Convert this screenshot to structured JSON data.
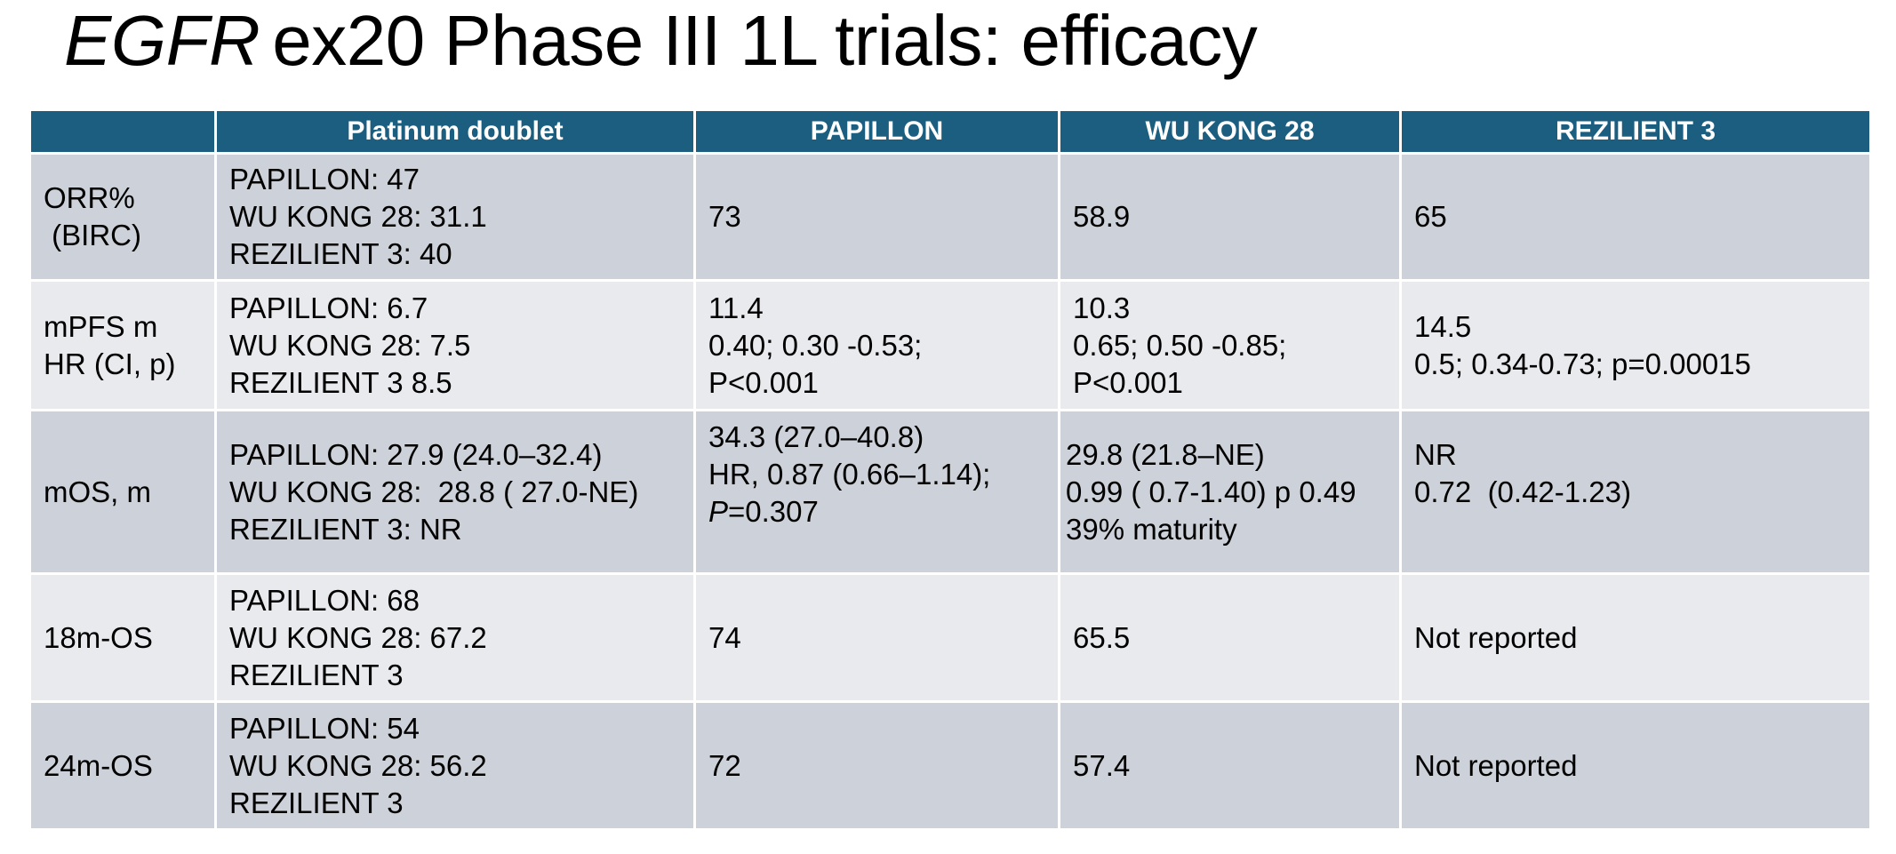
{
  "title": {
    "gene": "EGFR",
    "rest": "ex20 Phase III 1L trials: efficacy"
  },
  "table": {
    "headers": [
      "",
      "Platinum doublet",
      "PAPILLON",
      "WU KONG 28",
      "REZILIENT 3"
    ],
    "rows": [
      {
        "label": [
          "ORR%",
          " (BIRC)"
        ],
        "platinum": [
          "PAPILLON: 47",
          "WU KONG 28: 31.1",
          "REZILIENT 3: 40"
        ],
        "papillon": [
          "73"
        ],
        "wukong": [
          "58.9"
        ],
        "rezilient": [
          "65"
        ]
      },
      {
        "label": [
          "mPFS m",
          "HR (CI, p)"
        ],
        "platinum": [
          "PAPILLON: 6.7",
          "WU KONG 28: 7.5",
          "REZILIENT 3 8.5"
        ],
        "papillon": [
          "11.4",
          "0.40; 0.30 -0.53;",
          "P<0.001"
        ],
        "wukong": [
          "10.3",
          "0.65; 0.50 -0.85;",
          "P<0.001"
        ],
        "rezilient": [
          "14.5",
          "0.5; 0.34-0.73; p=0.00015"
        ]
      },
      {
        "label": [
          "mOS, m"
        ],
        "platinum": [
          "PAPILLON: 27.9 (24.0–32.4)",
          "WU KONG 28:  28.8 ( 27.0-NE)",
          "REZILIENT 3: NR"
        ],
        "papillon": [
          "34.3 (27.0–40.8)",
          "HR, 0.87 (0.66–1.14);",
          "P",
          "=0.307"
        ],
        "wukong": [
          "29.8 (21.8–NE)",
          "0.99 ( 0.7-1.40) p 0.49",
          "39% maturity"
        ],
        "rezilient": [
          "NR",
          "0.72  (0.42-1.23)"
        ]
      },
      {
        "label": [
          "18m-OS"
        ],
        "platinum": [
          "PAPILLON: 68",
          "WU KONG 28: 67.2",
          "REZILIENT 3"
        ],
        "papillon": [
          "74"
        ],
        "wukong": [
          "65.5"
        ],
        "rezilient": [
          "Not reported"
        ]
      },
      {
        "label": [
          "24m-OS"
        ],
        "platinum": [
          "PAPILLON: 54",
          "WU KONG 28: 56.2",
          "REZILIENT 3"
        ],
        "papillon": [
          "72"
        ],
        "wukong": [
          "57.4"
        ],
        "rezilient": [
          "Not reported"
        ]
      }
    ]
  }
}
